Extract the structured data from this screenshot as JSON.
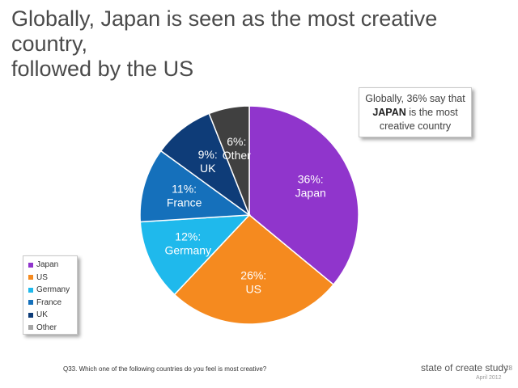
{
  "header": {
    "title_line1": "Globally, Japan is seen as the most creative country,",
    "title_line2": "followed by the US"
  },
  "callout": {
    "line1": "Globally, 36% say that",
    "emphasis": "JAPAN",
    "line2_rest": " is the most",
    "line3": "creative country"
  },
  "legend": {
    "items": [
      {
        "label": "Japan",
        "color": "#9035cc"
      },
      {
        "label": "US",
        "color": "#f58a1f"
      },
      {
        "label": "Germany",
        "color": "#1fb9ec"
      },
      {
        "label": "France",
        "color": "#1570bb"
      },
      {
        "label": "UK",
        "color": "#0e3c78"
      },
      {
        "label": "Other",
        "color": "#a6a6a6"
      }
    ]
  },
  "footer": {
    "question": "Q33. Which one of the following countries do you feel is most creative?",
    "brand": "state of create study",
    "page": "18",
    "date": "April 2012"
  },
  "chart_data": {
    "type": "pie",
    "title": "Globally, Japan is seen as the most creative country, followed by the US",
    "slices": [
      {
        "name": "Japan",
        "value": 36,
        "label": [
          "36%:",
          "Japan"
        ],
        "color": "#9035cc"
      },
      {
        "name": "US",
        "value": 26,
        "label": [
          "26%:",
          "US"
        ],
        "color": "#f58a1f"
      },
      {
        "name": "Germany",
        "value": 12,
        "label": [
          "12%:",
          "Germany"
        ],
        "color": "#1fb9ec"
      },
      {
        "name": "France",
        "value": 11,
        "label": [
          "11%:",
          "France"
        ],
        "color": "#1570bb"
      },
      {
        "name": "UK",
        "value": 9,
        "label": [
          "9%:",
          "UK"
        ],
        "color": "#0e3c78"
      },
      {
        "name": "Other",
        "value": 6,
        "label": [
          "6%:",
          "Other"
        ],
        "color": "#404040"
      }
    ],
    "start": "12 o'clock",
    "direction": "clockwise",
    "legend_position": "bottom-left"
  }
}
